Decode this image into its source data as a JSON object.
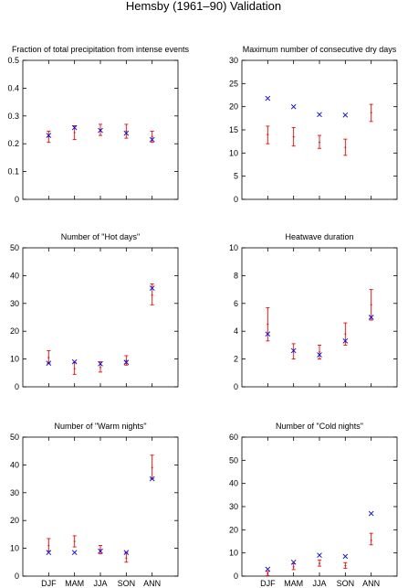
{
  "title": "Hemsby (1961–90) Validation",
  "colors": {
    "observed": "#ff0000",
    "model": "#0000ff",
    "axis": "#000000"
  },
  "markers": {
    "observed": "point-with-errorbar",
    "model": "x-cross"
  },
  "chart_data": [
    {
      "type": "scatter",
      "title": "Fraction of total precipitation from intense events",
      "categories": [
        "DJF",
        "MAM",
        "JJA",
        "SON",
        "ANN"
      ],
      "ylim": [
        0,
        0.5
      ],
      "yticks": [
        0,
        0.1,
        0.2,
        0.3,
        0.4,
        0.5
      ],
      "ytick_labels": [
        "0",
        "0.1",
        "0.2",
        "0.3",
        "0.4",
        "0.5"
      ],
      "show_xtick_labels": false,
      "series": [
        {
          "values": [
            0.225,
            0.24,
            0.25,
            0.245,
            0.225
          ],
          "lower": [
            0.205,
            0.215,
            0.23,
            0.22,
            0.205
          ],
          "upper": [
            0.245,
            0.265,
            0.27,
            0.27,
            0.245
          ]
        },
        {
          "values": [
            0.23,
            0.258,
            0.248,
            0.238,
            0.215
          ]
        }
      ]
    },
    {
      "type": "scatter",
      "title": "Maximum number of consecutive dry days",
      "categories": [
        "DJF",
        "MAM",
        "JJA",
        "SON",
        "ANN"
      ],
      "ylim": [
        0,
        30
      ],
      "yticks": [
        0,
        5,
        10,
        15,
        20,
        25,
        30
      ],
      "ytick_labels": [
        "0",
        "5",
        "10",
        "15",
        "20",
        "25",
        "30"
      ],
      "show_xtick_labels": false,
      "series": [
        {
          "values": [
            14,
            13.5,
            12.3,
            11.2,
            18.7
          ],
          "lower": [
            12,
            11.5,
            11,
            9.5,
            16.8
          ],
          "upper": [
            15.8,
            15.5,
            13.8,
            13,
            20.5
          ]
        },
        {
          "values": [
            21.8,
            20,
            18.3,
            18.2,
            null
          ]
        }
      ]
    },
    {
      "type": "scatter",
      "title": "Number of \"Hot days\"",
      "categories": [
        "DJF",
        "MAM",
        "JJA",
        "SON",
        "ANN"
      ],
      "ylim": [
        0,
        50
      ],
      "yticks": [
        0,
        10,
        20,
        30,
        40,
        50
      ],
      "ytick_labels": [
        "0",
        "10",
        "20",
        "30",
        "40",
        "50"
      ],
      "show_xtick_labels": false,
      "series": [
        {
          "values": [
            10.5,
            6.5,
            7,
            9.5,
            33
          ],
          "lower": [
            8.5,
            4.5,
            5.3,
            7.8,
            29.5
          ],
          "upper": [
            13,
            8.8,
            9,
            11.2,
            37
          ]
        },
        {
          "values": [
            8.5,
            9,
            8.3,
            8.8,
            35.5
          ]
        }
      ]
    },
    {
      "type": "scatter",
      "title": "Heatwave duration",
      "categories": [
        "DJF",
        "MAM",
        "JJA",
        "SON",
        "ANN"
      ],
      "ylim": [
        0,
        10
      ],
      "yticks": [
        0,
        2,
        4,
        6,
        8,
        10
      ],
      "ytick_labels": [
        "0",
        "2",
        "4",
        "6",
        "8",
        "10"
      ],
      "show_xtick_labels": false,
      "series": [
        {
          "values": [
            4.5,
            2.6,
            2.5,
            3.8,
            5.9
          ],
          "lower": [
            3.3,
            2.0,
            2.0,
            3.0,
            4.8
          ],
          "upper": [
            5.7,
            3.1,
            3.0,
            4.6,
            7.0
          ]
        },
        {
          "values": [
            3.8,
            2.6,
            2.3,
            3.3,
            5
          ]
        }
      ]
    },
    {
      "type": "scatter",
      "title": "Number of \"Warm nights\"",
      "categories": [
        "DJF",
        "MAM",
        "JJA",
        "SON",
        "ANN"
      ],
      "ylim": [
        0,
        50
      ],
      "yticks": [
        0,
        10,
        20,
        30,
        40,
        50
      ],
      "ytick_labels": [
        "0",
        "10",
        "20",
        "30",
        "40",
        "50"
      ],
      "show_xtick_labels": true,
      "series": [
        {
          "values": [
            11,
            12.5,
            9.5,
            6.5,
            39
          ],
          "lower": [
            9,
            10.5,
            8,
            5,
            35
          ],
          "upper": [
            13.5,
            14.5,
            11,
            8.5,
            43.5
          ]
        },
        {
          "values": [
            8.5,
            8.5,
            9,
            8.5,
            35
          ]
        }
      ]
    },
    {
      "type": "scatter",
      "title": "Number of \"Cold nights\"",
      "categories": [
        "DJF",
        "MAM",
        "JJA",
        "SON",
        "ANN"
      ],
      "ylim": [
        0,
        60
      ],
      "yticks": [
        0,
        10,
        20,
        30,
        40,
        50,
        60
      ],
      "ytick_labels": [
        "0",
        "10",
        "20",
        "30",
        "40",
        "50",
        "60"
      ],
      "show_xtick_labels": true,
      "series": [
        {
          "values": [
            1,
            4,
            5.5,
            4.5,
            15.5
          ],
          "lower": [
            0.2,
            2.8,
            4.3,
            3.3,
            13.5
          ],
          "upper": [
            2,
            5.3,
            7,
            5.8,
            18.5
          ]
        },
        {
          "values": [
            3,
            6,
            9,
            8.5,
            27
          ]
        }
      ]
    }
  ]
}
